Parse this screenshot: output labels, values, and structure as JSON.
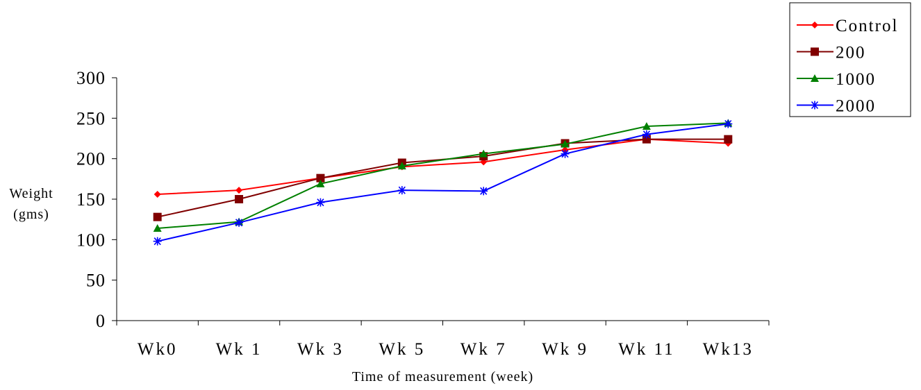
{
  "chart_data": {
    "type": "line",
    "title": "",
    "xlabel": "Time of measurement (week)",
    "ylabel": [
      "Weight",
      "(gms)"
    ],
    "categories": [
      "Wk0",
      "Wk 1",
      "Wk 3",
      "Wk 5",
      "Wk 7",
      "Wk 9",
      "Wk 11",
      "Wk13"
    ],
    "ylim": [
      0,
      300
    ],
    "yticks": [
      0,
      50,
      100,
      150,
      200,
      250,
      300
    ],
    "grid": false,
    "legend_position": "top-right",
    "series": [
      {
        "name": "Control",
        "color": "#ff0000",
        "marker": "diamond",
        "values": [
          156,
          161,
          176,
          190,
          196,
          211,
          224,
          219
        ]
      },
      {
        "name": "200",
        "color": "#800000",
        "marker": "square",
        "values": [
          128,
          150,
          176,
          195,
          203,
          219,
          224,
          224
        ]
      },
      {
        "name": "1000",
        "color": "#008000",
        "marker": "triangle",
        "values": [
          114,
          122,
          169,
          191,
          206,
          218,
          240,
          244
        ]
      },
      {
        "name": "2000",
        "color": "#0000ff",
        "marker": "asterisk",
        "values": [
          98,
          121,
          146,
          161,
          160,
          206,
          230,
          243
        ]
      }
    ]
  }
}
